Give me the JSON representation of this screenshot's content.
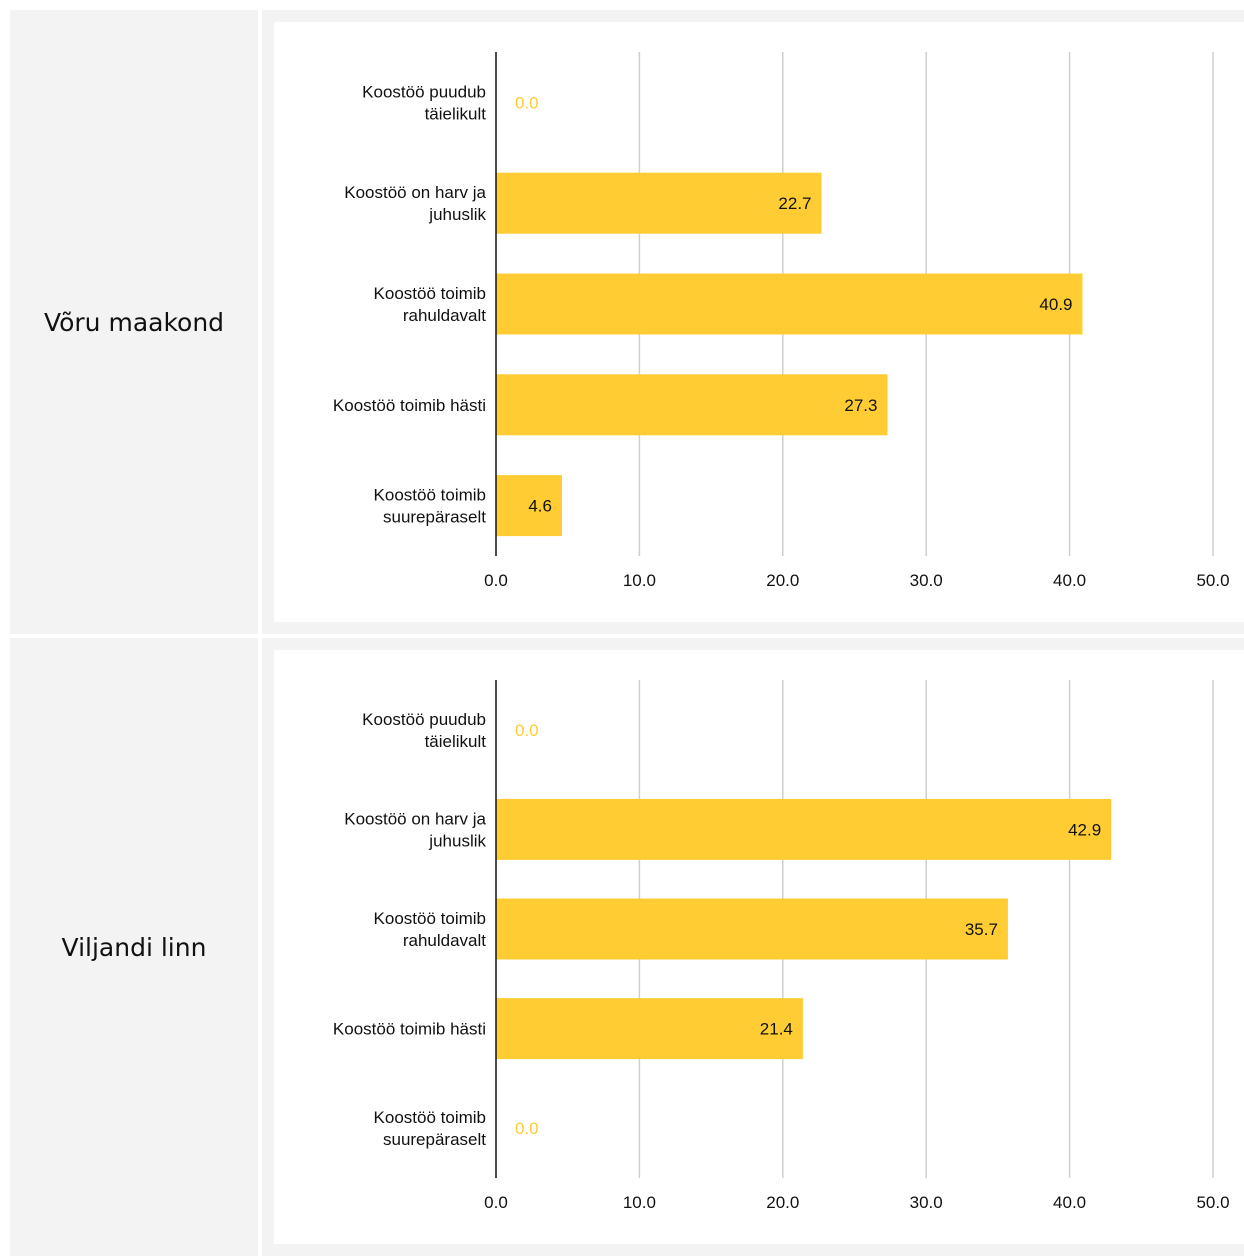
{
  "colors": {
    "bar": "#FFCD33",
    "zero_label": "#FFCD33",
    "label_text": "#111111",
    "gridline": "#cfcfcf",
    "axis": "#111111"
  },
  "rows": [
    {
      "region": "Võru maakond"
    },
    {
      "region": "Viljandi linn"
    }
  ],
  "chart_data": [
    {
      "type": "bar",
      "orientation": "horizontal",
      "categories": [
        [
          "Koostöö puudub",
          "täielikult"
        ],
        [
          "Koostöö on harv ja",
          "juhuslik"
        ],
        [
          "Koostöö toimib",
          "rahuldavalt"
        ],
        [
          "Koostöö toimib hästi"
        ],
        [
          "Koostöö toimib",
          "suurepäraselt"
        ]
      ],
      "values": [
        0.0,
        22.7,
        40.9,
        27.3,
        4.6
      ],
      "value_labels": [
        "0.0",
        "22.7",
        "40.9",
        "27.3",
        "4.6"
      ],
      "xlim": [
        0,
        50
      ],
      "xticks": [
        "0.0",
        "10.0",
        "20.0",
        "30.0",
        "40.0",
        "50.0"
      ],
      "grid": true
    },
    {
      "type": "bar",
      "orientation": "horizontal",
      "categories": [
        [
          "Koostöö puudub",
          "täielikult"
        ],
        [
          "Koostöö on harv ja",
          "juhuslik"
        ],
        [
          "Koostöö toimib",
          "rahuldavalt"
        ],
        [
          "Koostöö toimib hästi"
        ],
        [
          "Koostöö toimib",
          "suurepäraselt"
        ]
      ],
      "values": [
        0.0,
        42.9,
        35.7,
        21.4,
        0.0
      ],
      "value_labels": [
        "0.0",
        "42.9",
        "35.7",
        "21.4",
        "0.0"
      ],
      "xlim": [
        0,
        50
      ],
      "xticks": [
        "0.0",
        "10.0",
        "20.0",
        "30.0",
        "40.0",
        "50.0"
      ],
      "grid": true
    }
  ]
}
